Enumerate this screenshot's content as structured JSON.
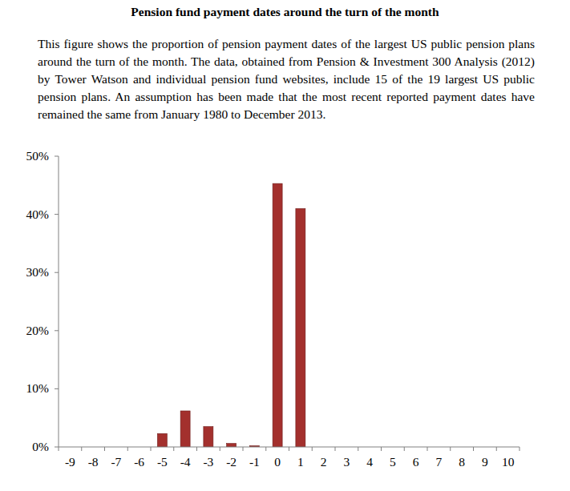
{
  "chart_data": {
    "type": "bar",
    "title": "Pension fund payment dates around the turn of the month",
    "subtitle": "This figure shows the proportion of pension payment dates of the largest US public pension plans around the turn of the month. The data, obtained from Pension & Investment 300 Analysis (2012) by Tower Watson and individual pension fund websites, include 15 of the 19 largest US public pension plans. An assumption has been made that the most recent reported payment dates have remained the same from January 1980 to December 2013.",
    "categories": [
      -9,
      -8,
      -7,
      -6,
      -5,
      -4,
      -3,
      -2,
      -1,
      0,
      1,
      2,
      3,
      4,
      5,
      6,
      7,
      8,
      9,
      10
    ],
    "values": [
      0,
      0,
      0,
      0,
      2.3,
      6.2,
      3.5,
      0.6,
      0.2,
      45.3,
      41.0,
      0,
      0,
      0,
      0,
      0,
      0,
      0,
      0,
      0
    ],
    "color": "#a3302d",
    "ylim": [
      0,
      50
    ],
    "yticks": [
      {
        "value": 0,
        "label": "0%"
      },
      {
        "value": 10,
        "label": "10%"
      },
      {
        "value": 20,
        "label": "20%"
      },
      {
        "value": 30,
        "label": "30%"
      },
      {
        "value": 40,
        "label": "40%"
      },
      {
        "value": 50,
        "label": "50%"
      }
    ],
    "grid": false
  }
}
